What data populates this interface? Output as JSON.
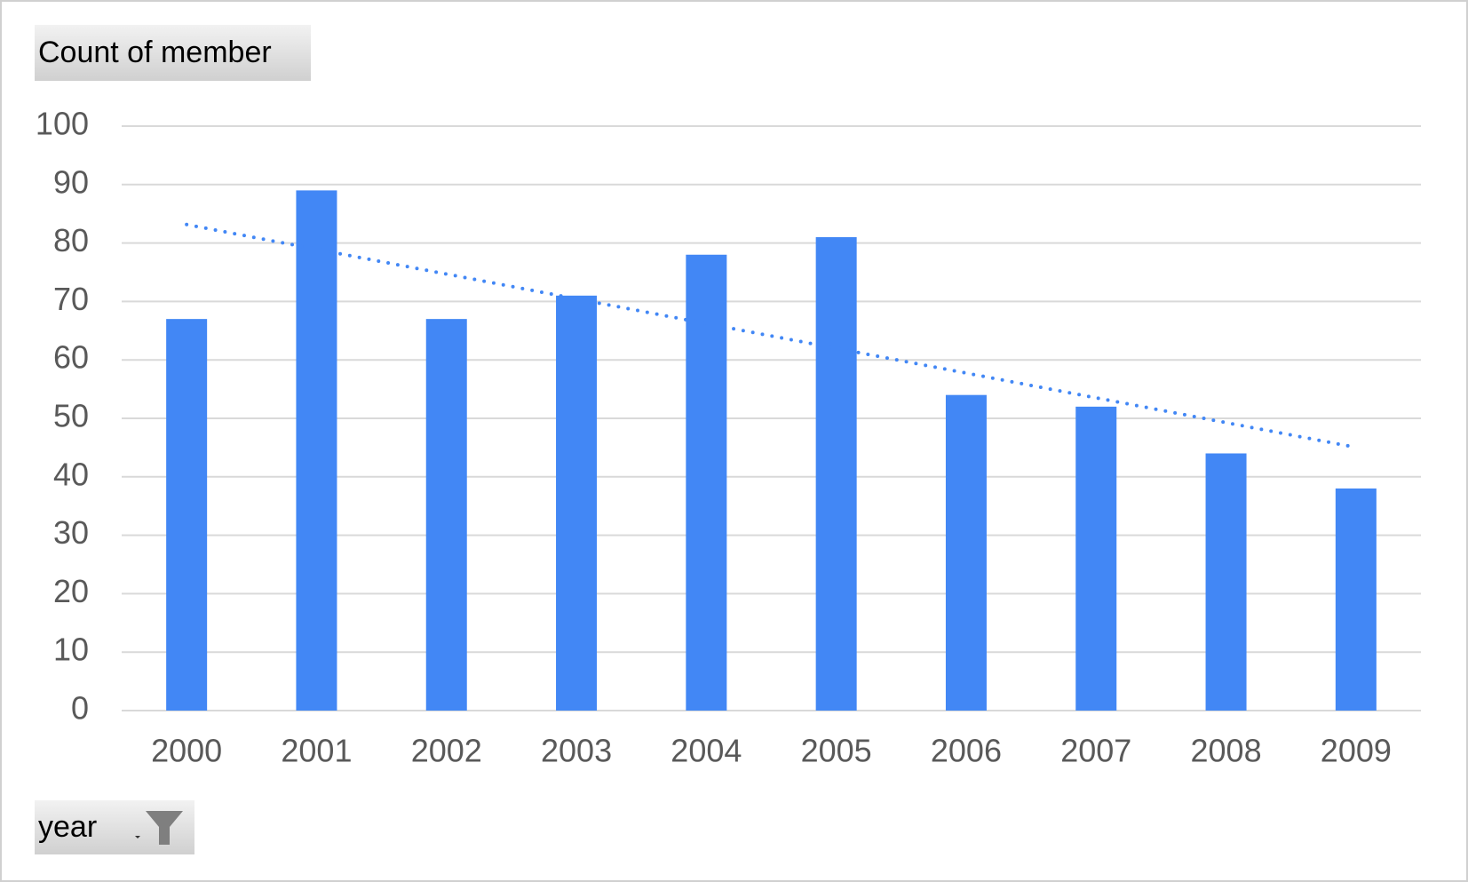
{
  "chart_data": {
    "type": "bar",
    "value_field": "Count of member",
    "axis_field": "year",
    "categories": [
      "2000",
      "2001",
      "2002",
      "2003",
      "2004",
      "2005",
      "2006",
      "2007",
      "2008",
      "2009"
    ],
    "values": [
      67,
      89,
      67,
      71,
      78,
      81,
      54,
      52,
      44,
      38
    ],
    "color": "#4287f5",
    "trendline": "linear",
    "ylim": [
      0,
      100
    ],
    "yticks": [
      0,
      10,
      20,
      30,
      40,
      50,
      60,
      70,
      80,
      90,
      100
    ],
    "grid": true
  }
}
